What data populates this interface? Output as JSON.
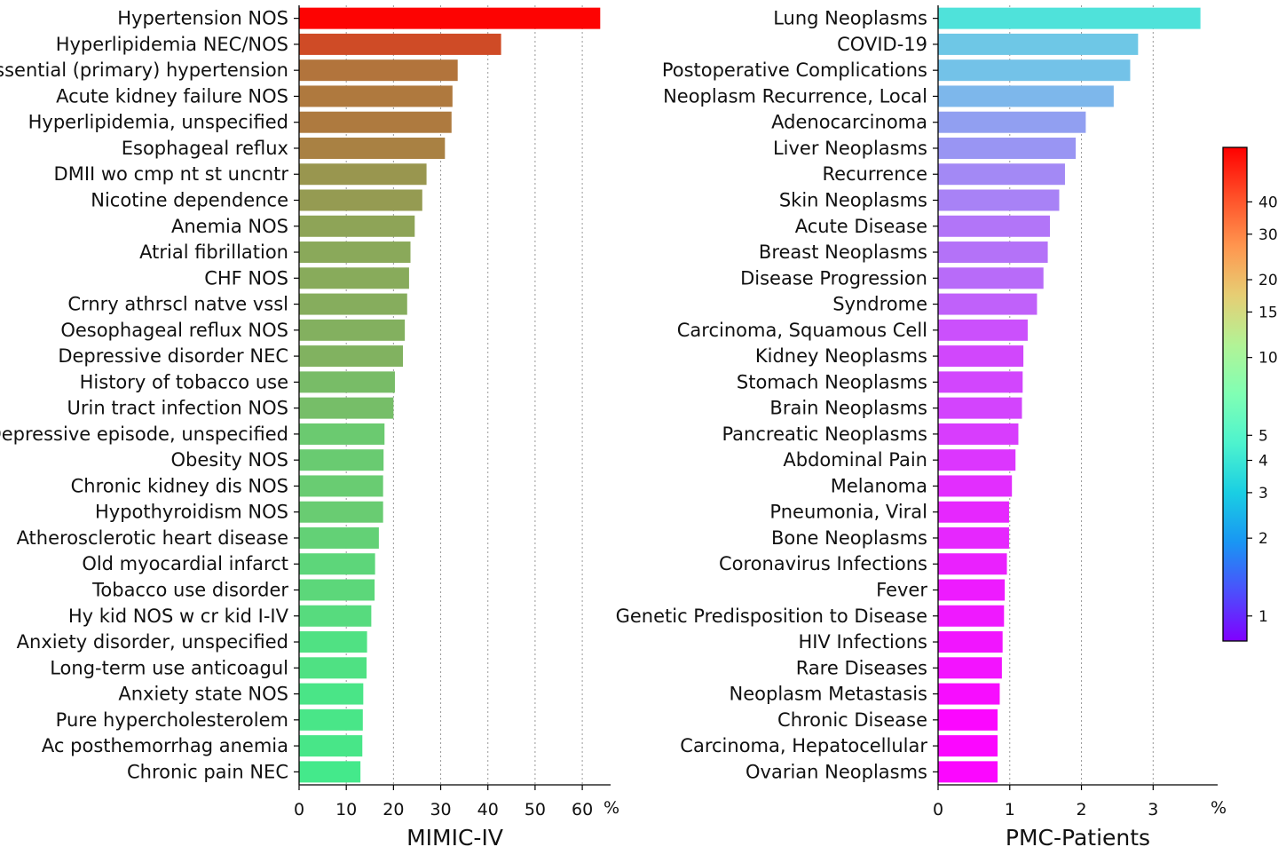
{
  "chart_data": [
    {
      "type": "bar",
      "orientation": "horizontal",
      "xlabel": "MIMIC-IV",
      "unit": "%",
      "xlim": [
        0,
        66
      ],
      "xticks": [
        0,
        10,
        20,
        30,
        40,
        50,
        60
      ],
      "grid": "vertical dotted",
      "categories": [
        "Hypertension NOS",
        "Hyperlipidemia NEC/NOS",
        "Essential (primary) hypertension",
        "Acute kidney failure NOS",
        "Hyperlipidemia, unspecified",
        "Esophageal reflux",
        "DMII wo cmp nt st uncntr",
        "Nicotine dependence",
        "Anemia NOS",
        "Atrial fibrillation",
        "CHF NOS",
        "Crnry athrscl natve vssl",
        "Oesophageal reflux NOS",
        "Depressive disorder NEC",
        "History of tobacco use",
        "Urin tract infection NOS",
        "Depressive episode, unspecified",
        "Obesity NOS",
        "Chronic kidney dis NOS",
        "Hypothyroidism NOS",
        "Atherosclerotic heart disease",
        "Old myocardial infarct",
        "Tobacco use disorder",
        "Hy kid NOS w cr kid I-IV",
        "Anxiety disorder, unspecified",
        "Long-term use anticoagul",
        "Anxiety state NOS",
        "Pure hypercholesterolem",
        "Ac posthemorrhag anemia",
        "Chronic pain NEC"
      ],
      "values": [
        63.8,
        42.8,
        33.6,
        32.5,
        32.3,
        30.9,
        27.0,
        26.1,
        24.5,
        23.6,
        23.3,
        22.9,
        22.4,
        22.0,
        20.3,
        20.0,
        18.1,
        17.9,
        17.8,
        17.8,
        16.9,
        16.1,
        16.0,
        15.3,
        14.4,
        14.3,
        13.6,
        13.5,
        13.4,
        13.0
      ]
    },
    {
      "type": "bar",
      "orientation": "horizontal",
      "xlabel": "PMC-Patients",
      "unit": "%",
      "xlim": [
        0,
        3.9
      ],
      "xticks": [
        0,
        1,
        2,
        3
      ],
      "grid": "vertical dotted",
      "categories": [
        "Lung Neoplasms",
        "COVID-19",
        "Postoperative Complications",
        "Neoplasm Recurrence, Local",
        "Adenocarcinoma",
        "Liver Neoplasms",
        "Recurrence",
        "Skin Neoplasms",
        "Acute Disease",
        "Breast Neoplasms",
        "Disease Progression",
        "Syndrome",
        "Carcinoma, Squamous Cell",
        "Kidney Neoplasms",
        "Stomach Neoplasms",
        "Brain Neoplasms",
        "Pancreatic Neoplasms",
        "Abdominal Pain",
        "Melanoma",
        "Pneumonia, Viral",
        "Bone Neoplasms",
        "Coronavirus Infections",
        "Fever",
        "Genetic Predisposition to Disease",
        "HIV Infections",
        "Rare Diseases",
        "Neoplasm Metastasis",
        "Chronic Disease",
        "Carcinoma, Hepatocellular",
        "Ovarian Neoplasms"
      ],
      "values": [
        3.66,
        2.79,
        2.68,
        2.45,
        2.06,
        1.92,
        1.77,
        1.69,
        1.56,
        1.53,
        1.47,
        1.38,
        1.25,
        1.19,
        1.18,
        1.17,
        1.12,
        1.08,
        1.03,
        0.99,
        0.99,
        0.96,
        0.93,
        0.92,
        0.9,
        0.89,
        0.86,
        0.83,
        0.83,
        0.83
      ]
    }
  ],
  "colorbar": {
    "scale": "log",
    "range": [
      0.8,
      65
    ],
    "ticks": [
      1,
      2,
      3,
      4,
      5,
      10,
      15,
      20,
      30,
      40
    ],
    "tick_labels": [
      "1",
      "2",
      "3",
      "4",
      "5",
      "10",
      "15",
      "20",
      "30",
      "40"
    ],
    "colormap": "rainbow"
  }
}
